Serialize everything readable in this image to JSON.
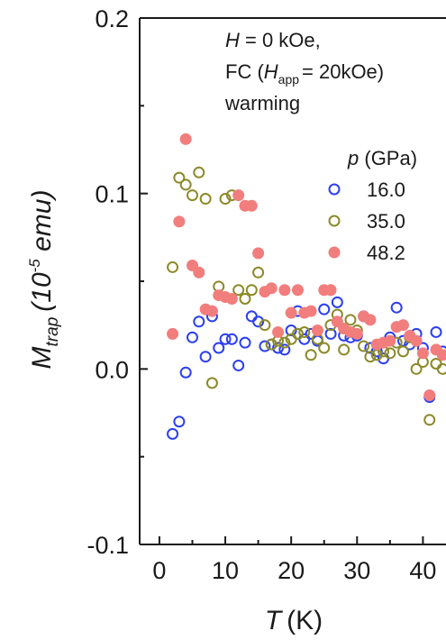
{
  "chart_data": {
    "type": "scatter",
    "title": "",
    "xlabel_var": "T",
    "xlabel_unit": "(K)",
    "ylabel_var": "M",
    "ylabel_sub": "trap",
    "ylabel_unit_open": "(10",
    "ylabel_unit_sup": "-5",
    "ylabel_unit_close": " emu)",
    "xlim": [
      -3,
      43.5
    ],
    "ylim": [
      -0.1,
      0.2
    ],
    "xticks": [
      0,
      10,
      20,
      30,
      40
    ],
    "xtick_labels": [
      "0",
      "10",
      "20",
      "30",
      "40"
    ],
    "yticks": [
      -0.1,
      0.0,
      0.1,
      0.2
    ],
    "ytick_labels": [
      "-0.1",
      "0.0",
      "0.1",
      "0.2"
    ],
    "grid": false,
    "legend_title_var": "p",
    "legend_title_unit": " (GPa)",
    "legend_position": "top-right",
    "annotation": {
      "line1_var": "H",
      "line1_rest": " = 0 kOe,",
      "line2_pre": "FC (",
      "line2_var": "H",
      "line2_sub": "app",
      "line2_rest": "= 20kOe)",
      "line3": "warming"
    },
    "series": [
      {
        "name": "16.0",
        "marker": "open-circle",
        "color": "#2b3ff0",
        "points": [
          [
            2,
            -0.037
          ],
          [
            3,
            -0.03
          ],
          [
            4,
            -0.002
          ],
          [
            5,
            0.018
          ],
          [
            6,
            0.027
          ],
          [
            7,
            0.007
          ],
          [
            8,
            0.03
          ],
          [
            9,
            0.012
          ],
          [
            10,
            0.017
          ],
          [
            11,
            0.017
          ],
          [
            12,
            0.002
          ],
          [
            13,
            0.015
          ],
          [
            14,
            0.03
          ],
          [
            15,
            0.027
          ],
          [
            16,
            0.013
          ],
          [
            17,
            0.014
          ],
          [
            18,
            0.012
          ],
          [
            19,
            0.011
          ],
          [
            20,
            0.022
          ],
          [
            21,
            0.033
          ],
          [
            22,
            0.017
          ],
          [
            23,
            0.02
          ],
          [
            24,
            0.016
          ],
          [
            25,
            0.034
          ],
          [
            26,
            0.02
          ],
          [
            27,
            0.038
          ],
          [
            28,
            0.019
          ],
          [
            29,
            0.018
          ],
          [
            30,
            0.019
          ],
          [
            31,
            0.03
          ],
          [
            32,
            0.012
          ],
          [
            33,
            0.01
          ],
          [
            34,
            0.006
          ],
          [
            35,
            0.018
          ],
          [
            36,
            0.035
          ],
          [
            37,
            0.016
          ],
          [
            38,
            0.014
          ],
          [
            39,
            0.02
          ],
          [
            40,
            0.012
          ],
          [
            41,
            -0.016
          ],
          [
            42,
            0.021
          ],
          [
            43,
            0.01
          ]
        ]
      },
      {
        "name": "35.0",
        "marker": "open-circle",
        "color": "#8c8a2a",
        "points": [
          [
            2,
            0.058
          ],
          [
            3,
            0.109
          ],
          [
            4,
            0.105
          ],
          [
            5,
            0.099
          ],
          [
            6,
            0.112
          ],
          [
            7,
            0.097
          ],
          [
            8,
            -0.008
          ],
          [
            9,
            0.047
          ],
          [
            10,
            0.097
          ],
          [
            11,
            0.099
          ],
          [
            12,
            0.045
          ],
          [
            13,
            0.04
          ],
          [
            14,
            0.045
          ],
          [
            15,
            0.055
          ],
          [
            16,
            0.025
          ],
          [
            17,
            0.014
          ],
          [
            18,
            0.016
          ],
          [
            19,
            0.015
          ],
          [
            20,
            0.017
          ],
          [
            21,
            0.02
          ],
          [
            22,
            0.021
          ],
          [
            23,
            0.008
          ],
          [
            24,
            0.017
          ],
          [
            25,
            0.012
          ],
          [
            26,
            0.025
          ],
          [
            27,
            0.031
          ],
          [
            28,
            0.011
          ],
          [
            29,
            0.028
          ],
          [
            30,
            0.022
          ],
          [
            31,
            0.013
          ],
          [
            32,
            0.007
          ],
          [
            33,
            0.008
          ],
          [
            34,
            0.01
          ],
          [
            35,
            0.009
          ],
          [
            36,
            0.015
          ],
          [
            37,
            0.01
          ],
          [
            38,
            0.018
          ],
          [
            39,
            0.0
          ],
          [
            40,
            0.004
          ],
          [
            41,
            -0.029
          ],
          [
            42,
            0.003
          ],
          [
            43,
            0.0
          ]
        ]
      },
      {
        "name": "48.2",
        "marker": "filled-circle",
        "color": "#f27d7d",
        "points": [
          [
            2,
            0.02
          ],
          [
            3,
            0.084
          ],
          [
            4,
            0.131
          ],
          [
            5,
            0.059
          ],
          [
            6,
            0.055
          ],
          [
            7,
            0.034
          ],
          [
            8,
            0.033
          ],
          [
            9,
            0.042
          ],
          [
            10,
            0.041
          ],
          [
            11,
            0.04
          ],
          [
            12,
            0.099
          ],
          [
            13,
            0.093
          ],
          [
            14,
            0.093
          ],
          [
            15,
            0.066
          ],
          [
            16,
            0.044
          ],
          [
            17,
            0.046
          ],
          [
            18,
            0.021
          ],
          [
            19,
            0.045
          ],
          [
            20,
            0.032
          ],
          [
            21,
            0.045
          ],
          [
            22,
            0.032
          ],
          [
            23,
            0.033
          ],
          [
            24,
            0.022
          ],
          [
            25,
            0.045
          ],
          [
            26,
            0.045
          ],
          [
            27,
            0.027
          ],
          [
            28,
            0.023
          ],
          [
            29,
            0.021
          ],
          [
            30,
            0.02
          ],
          [
            31,
            0.03
          ],
          [
            32,
            0.028
          ],
          [
            33,
            0.014
          ],
          [
            34,
            0.015
          ],
          [
            35,
            0.016
          ],
          [
            36,
            0.024
          ],
          [
            37,
            0.025
          ],
          [
            38,
            0.019
          ],
          [
            39,
            0.016
          ],
          [
            40,
            0.009
          ],
          [
            41,
            -0.015
          ],
          [
            42,
            0.011
          ],
          [
            43,
            0.008
          ]
        ]
      }
    ]
  }
}
